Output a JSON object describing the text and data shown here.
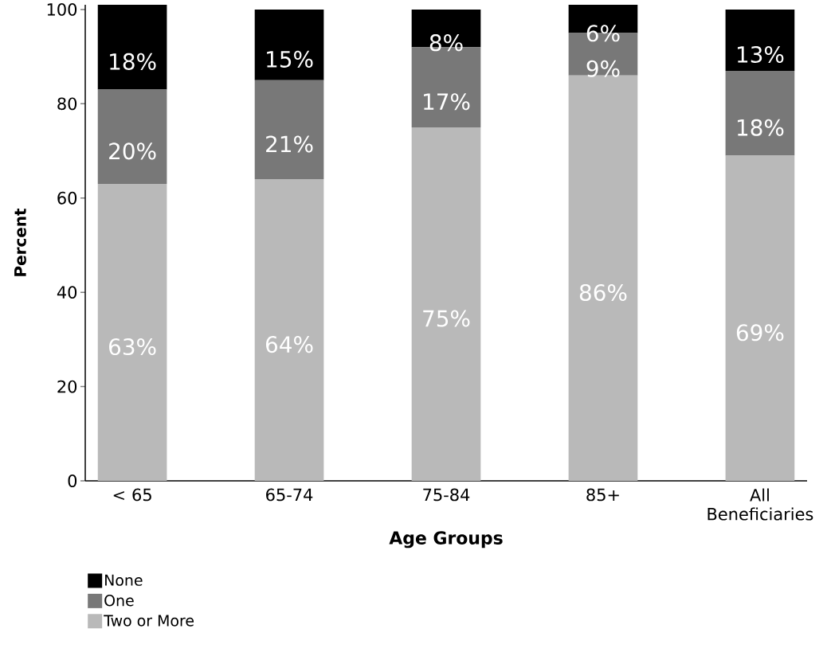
{
  "chart_data": {
    "type": "bar",
    "stacked": true,
    "xlabel": "Age Groups",
    "ylabel": "Percent",
    "categories": [
      "< 65",
      "65-74",
      "75-84",
      "85+",
      "All Beneficiaries"
    ],
    "series": [
      {
        "name": "Two or More",
        "color": "#b9b9b9",
        "values": [
          63,
          64,
          75,
          86,
          69
        ],
        "value_labels": [
          "63%",
          "64%",
          "75%",
          "86%",
          "69%"
        ]
      },
      {
        "name": "One",
        "color": "#787878",
        "values": [
          20,
          21,
          17,
          9,
          18
        ],
        "value_labels": [
          "20%",
          "21%",
          "17%",
          "9%",
          "18%"
        ]
      },
      {
        "name": "None",
        "color": "#000000",
        "values": [
          18,
          15,
          8,
          6,
          13
        ],
        "value_labels": [
          "18%",
          "15%",
          "8%",
          "6%",
          "13%"
        ]
      }
    ],
    "ylim": [
      0,
      101
    ],
    "yticks": [
      0,
      20,
      40,
      60,
      80,
      100
    ],
    "grid": false,
    "legend": "bottom left"
  }
}
